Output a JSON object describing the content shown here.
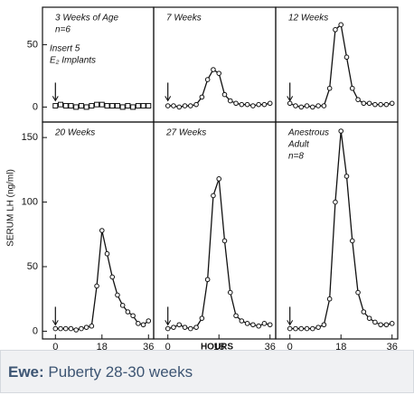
{
  "chart_data": [
    {
      "type": "line",
      "marker": "square",
      "annotations": [
        "3 Weeks of Age",
        "n=6",
        "Insert 5",
        "E₂ Implants"
      ],
      "x": [
        0,
        2,
        4,
        6,
        8,
        10,
        12,
        14,
        16,
        18,
        20,
        22,
        24,
        26,
        28,
        30,
        32,
        34,
        36
      ],
      "values": [
        1,
        2,
        1,
        1,
        0,
        1,
        0,
        1,
        2,
        2,
        1,
        1,
        1,
        0,
        1,
        0,
        1,
        1,
        1
      ],
      "xlim": [
        -5,
        38
      ],
      "ylim": [
        -12,
        80
      ],
      "yticks": [
        0,
        50
      ]
    },
    {
      "type": "line",
      "marker": "circle",
      "annotations": [
        "7 Weeks"
      ],
      "x": [
        0,
        2,
        4,
        6,
        8,
        10,
        12,
        14,
        16,
        18,
        20,
        22,
        24,
        26,
        28,
        30,
        32,
        34,
        36
      ],
      "values": [
        1,
        1,
        0,
        1,
        1,
        2,
        8,
        22,
        30,
        27,
        10,
        5,
        3,
        2,
        2,
        1,
        2,
        2,
        3
      ],
      "xlim": [
        -5,
        38
      ],
      "ylim": [
        -12,
        80
      ]
    },
    {
      "type": "line",
      "marker": "circle",
      "annotations": [
        "12 Weeks"
      ],
      "x": [
        0,
        2,
        4,
        6,
        8,
        10,
        12,
        14,
        16,
        18,
        20,
        22,
        24,
        26,
        28,
        30,
        32,
        34,
        36
      ],
      "values": [
        3,
        1,
        0,
        1,
        0,
        1,
        1,
        15,
        62,
        66,
        40,
        15,
        6,
        3,
        3,
        2,
        2,
        2,
        3
      ],
      "xlim": [
        -5,
        38
      ],
      "ylim": [
        -12,
        80
      ]
    },
    {
      "type": "line",
      "marker": "circle",
      "annotations": [
        "20 Weeks"
      ],
      "x": [
        0,
        2,
        4,
        6,
        8,
        10,
        12,
        14,
        16,
        18,
        20,
        22,
        24,
        26,
        28,
        30,
        32,
        34,
        36
      ],
      "values": [
        2,
        2,
        2,
        2,
        1,
        2,
        3,
        4,
        35,
        78,
        60,
        42,
        28,
        20,
        15,
        12,
        6,
        5,
        8
      ],
      "xlim": [
        -5,
        38
      ],
      "ylim": [
        -6,
        162
      ],
      "yticks": [
        0,
        50,
        100,
        150
      ],
      "xticks": [
        0,
        18,
        36
      ]
    },
    {
      "type": "line",
      "marker": "circle",
      "annotations": [
        "27 Weeks"
      ],
      "x": [
        0,
        2,
        4,
        6,
        8,
        10,
        12,
        14,
        16,
        18,
        20,
        22,
        24,
        26,
        28,
        30,
        32,
        34,
        36
      ],
      "values": [
        2,
        3,
        5,
        3,
        2,
        3,
        10,
        40,
        105,
        118,
        70,
        30,
        12,
        8,
        6,
        5,
        4,
        6,
        5
      ],
      "xlim": [
        -5,
        38
      ],
      "ylim": [
        -6,
        162
      ],
      "xticks": [
        0,
        18,
        36
      ]
    },
    {
      "type": "line",
      "marker": "circle",
      "annotations": [
        "Anestrous",
        "Adult",
        "n=8"
      ],
      "x": [
        0,
        2,
        4,
        6,
        8,
        10,
        12,
        14,
        16,
        18,
        20,
        22,
        24,
        26,
        28,
        30,
        32,
        34,
        36
      ],
      "values": [
        2,
        2,
        2,
        2,
        2,
        3,
        5,
        25,
        100,
        155,
        120,
        70,
        30,
        15,
        10,
        7,
        5,
        5,
        6
      ],
      "xlim": [
        -5,
        38
      ],
      "ylim": [
        -6,
        162
      ],
      "xticks": [
        0,
        18,
        36
      ]
    }
  ],
  "figure": {
    "y_label": "SERUM LH (ng/ml)",
    "x_label": "HOURS"
  },
  "caption": {
    "bold": "Ewe:",
    "text": "Puberty 28-30 weeks"
  }
}
